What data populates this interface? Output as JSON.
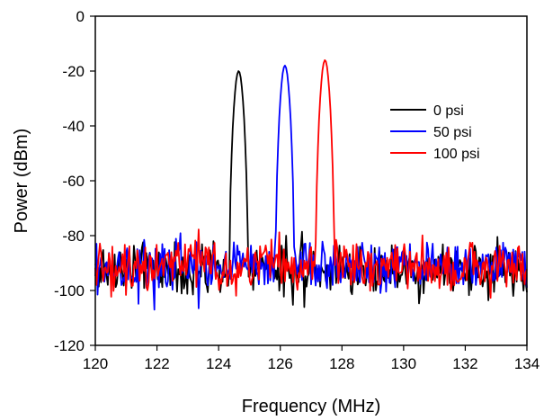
{
  "chart_data": {
    "type": "line",
    "title": "",
    "xlabel": "Frequency (MHz)",
    "ylabel": "Power (dBm)",
    "xlim": [
      120,
      134
    ],
    "ylim": [
      -120,
      0
    ],
    "x_ticks": [
      120,
      122,
      124,
      126,
      128,
      130,
      132,
      134
    ],
    "y_ticks": [
      0,
      -20,
      -40,
      -60,
      -80,
      -100,
      -120
    ],
    "x_tick_labels": [
      "120",
      "122",
      "124",
      "126",
      "128",
      "130",
      "132",
      "134"
    ],
    "y_tick_labels": [
      "0",
      "-20",
      "-40",
      "-60",
      "-80",
      "-100",
      "-120"
    ],
    "grid": false,
    "legend_position": "right",
    "series": [
      {
        "name": "0 psi",
        "color": "#000000",
        "peak_x": 124.65,
        "peak_y": -20,
        "noise_floor": -92
      },
      {
        "name": "50 psi",
        "color": "#0000ff",
        "peak_x": 126.15,
        "peak_y": -18,
        "noise_floor": -91
      },
      {
        "name": "100 psi",
        "color": "#ff0000",
        "peak_x": 127.45,
        "peak_y": -16,
        "noise_floor": -91
      }
    ]
  }
}
